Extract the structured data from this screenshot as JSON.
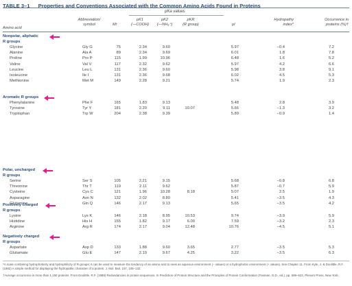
{
  "table": {
    "number": "TABLE 3–1",
    "title": "Properties and Conventions Associated with the Common Amino Acids Found in Proteins"
  },
  "headers": {
    "pk_values": "pKa values",
    "amino_acid": "Amino acid",
    "abbreviation_1": "Abbreviation/",
    "abbreviation_2": "symbol",
    "mr": "Mr",
    "pk1": "pK1",
    "pk1_sub": "(—COOH)",
    "pk2": "pK2",
    "pk2_sub": "(—NH₃⁺)",
    "pkr": "pKR",
    "pkr_sub": "(R group)",
    "pi": "pI",
    "hydropathy_1": "Hydropathy",
    "hydropathy_2": "index*",
    "occurrence_1": "Occurrence in",
    "occurrence_2": "proteins (%)†"
  },
  "sections": [
    {
      "title": "Nonpolar, aliphatic",
      "subtitle": "R groups",
      "rows": [
        {
          "name": "Glycine",
          "abbr": "Gly G",
          "mr": "75",
          "pk1": "2.34",
          "pk2": "9.60",
          "pkr": "",
          "pi": "5.97",
          "hyd": "−0.4",
          "occ": "7.2"
        },
        {
          "name": "Alanine",
          "abbr": "Ala A",
          "mr": "89",
          "pk1": "2.34",
          "pk2": "9.69",
          "pkr": "",
          "pi": "6.01",
          "hyd": "1.8",
          "occ": "7.8"
        },
        {
          "name": "Proline",
          "abbr": "Pro P",
          "mr": "115",
          "pk1": "1.99",
          "pk2": "10.96",
          "pkr": "",
          "pi": "6.48",
          "hyd": "1.6",
          "occ": "5.2"
        },
        {
          "name": "Valine",
          "abbr": "Val V",
          "mr": "117",
          "pk1": "2.32",
          "pk2": "9.62",
          "pkr": "",
          "pi": "5.97",
          "hyd": "4.2",
          "occ": "6.6"
        },
        {
          "name": "Leucine",
          "abbr": "Leu L",
          "mr": "131",
          "pk1": "2.36",
          "pk2": "9.60",
          "pkr": "",
          "pi": "5.98",
          "hyd": "3.8",
          "occ": "9.1"
        },
        {
          "name": "Isoleucine",
          "abbr": "Ile I",
          "mr": "131",
          "pk1": "2.36",
          "pk2": "9.68",
          "pkr": "",
          "pi": "6.02",
          "hyd": "4.5",
          "occ": "5.3"
        },
        {
          "name": "Methionine",
          "abbr": "Met M",
          "mr": "149",
          "pk1": "2.28",
          "pk2": "9.21",
          "pkr": "",
          "pi": "5.74",
          "hyd": "1.9",
          "occ": "2.3"
        }
      ]
    },
    {
      "title": "Aromatic R groups",
      "subtitle": "",
      "rows": [
        {
          "name": "Phenylalanine",
          "abbr": "Phe F",
          "mr": "165",
          "pk1": "1.83",
          "pk2": "9.13",
          "pkr": "",
          "pi": "5.48",
          "hyd": "2.8",
          "occ": "3.9"
        },
        {
          "name": "Tyrosine",
          "abbr": "Tyr Y",
          "mr": "181",
          "pk1": "2.20",
          "pk2": "9.11",
          "pkr": "10.07",
          "pi": "5.66",
          "hyd": "−1.3",
          "occ": "3.2"
        },
        {
          "name": "Tryptophan",
          "abbr": "Trp W",
          "mr": "204",
          "pk1": "2.38",
          "pk2": "9.39",
          "pkr": "",
          "pi": "5.89",
          "hyd": "−0.9",
          "occ": "1.4"
        }
      ]
    },
    {
      "title": "Polar, uncharged",
      "subtitle": "R groups",
      "rows": [
        {
          "name": "Serine",
          "abbr": "Ser S",
          "mr": "105",
          "pk1": "2.21",
          "pk2": "9.15",
          "pkr": "",
          "pi": "5.68",
          "hyd": "−0.8",
          "occ": "6.8"
        },
        {
          "name": "Threonine",
          "abbr": "Thr T",
          "mr": "119",
          "pk1": "2.11",
          "pk2": "9.62",
          "pkr": "",
          "pi": "5.87",
          "hyd": "−0.7",
          "occ": "5.9"
        },
        {
          "name": "Cysteine",
          "abbr": "Cys C",
          "mr": "121",
          "pk1": "1.96",
          "pk2": "10.28",
          "pkr": "8.18",
          "pi": "5.07",
          "hyd": "2.5",
          "occ": "1.9"
        },
        {
          "name": "Asparagine",
          "abbr": "Asn N",
          "mr": "132",
          "pk1": "2.02",
          "pk2": "8.80",
          "pkr": "",
          "pi": "5.41",
          "hyd": "−3.5",
          "occ": "4.3"
        },
        {
          "name": "Glutamine",
          "abbr": "Gln Q",
          "mr": "146",
          "pk1": "2.17",
          "pk2": "9.13",
          "pkr": "",
          "pi": "5.65",
          "hyd": "−3.5",
          "occ": "4.2"
        }
      ]
    },
    {
      "title": "Positively charged",
      "subtitle": "R groups",
      "rows": [
        {
          "name": "Lysine",
          "abbr": "Lys K",
          "mr": "146",
          "pk1": "2.18",
          "pk2": "8.95",
          "pkr": "10.53",
          "pi": "9.74",
          "hyd": "−3.9",
          "occ": "5.9"
        },
        {
          "name": "Histidine",
          "abbr": "His H",
          "mr": "155",
          "pk1": "1.82",
          "pk2": "9.17",
          "pkr": "6.00",
          "pi": "7.59",
          "hyd": "−3.2",
          "occ": "2.3"
        },
        {
          "name": "Arginine",
          "abbr": "Arg R",
          "mr": "174",
          "pk1": "2.17",
          "pk2": "9.04",
          "pkr": "12.48",
          "pi": "10.76",
          "hyd": "−4.5",
          "occ": "5.1"
        }
      ]
    },
    {
      "title": "Negatively charged",
      "subtitle": "R groups",
      "rows": [
        {
          "name": "Aspartate",
          "abbr": "Asp D",
          "mr": "133",
          "pk1": "1.88",
          "pk2": "9.60",
          "pkr": "3.65",
          "pi": "2.77",
          "hyd": "−3.5",
          "occ": "5.3"
        },
        {
          "name": "Glutamate",
          "abbr": "Glu E",
          "mr": "147",
          "pk1": "2.19",
          "pk2": "9.67",
          "pkr": "4.25",
          "pi": "3.22",
          "hyd": "−3.5",
          "occ": "6.3"
        }
      ]
    }
  ],
  "footnotes": {
    "hydropathy": "*A scale combining hydrophobicity and hydrophilicity of R groups; it can be used to measure the tendency of an amino acid to seek an aqueous environment (− values) or a hydrophobic environment (+ values). See Chapter 11. From Kyte, J. & Doolittle, R.F. (1982) A simple method for displaying the hydropathic character of a protein. J. Mol. Biol. 157, 105–132.",
    "occurrence": "†Average occurrence in more than 1,150 proteins. From Doolittle, R.F. (1989) Redundancies in protein sequences. In Prediction of Protein Structure and the Principles of Protein Conformation (Fasman, G.D., ed.), pp. 599–623, Plenum Press, New York."
  },
  "annotation_color": "#e6198f",
  "accent_color": "#2a4d7a"
}
